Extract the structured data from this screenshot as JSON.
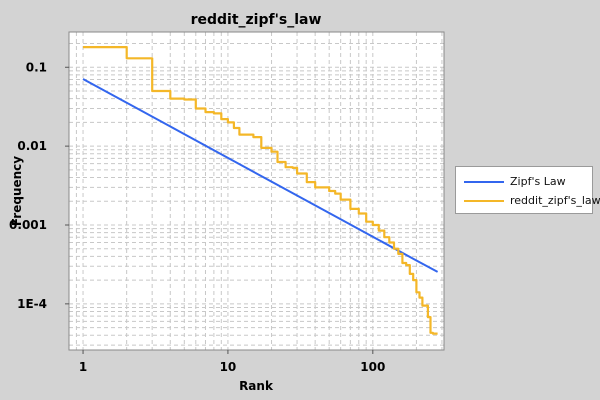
{
  "chart_data": {
    "type": "line",
    "title": "reddit_zipf's_law",
    "xlabel": "Rank",
    "ylabel": "Frequency",
    "x_scale": "log",
    "y_scale": "log",
    "xlim": [
      0.8,
      310
    ],
    "ylim": [
      2.6e-05,
      0.28
    ],
    "x_ticks": [
      1,
      10,
      100
    ],
    "x_tick_labels": [
      "1",
      "10",
      "100"
    ],
    "y_ticks": [
      0.0001,
      0.001,
      0.01,
      0.1
    ],
    "y_tick_labels": [
      "1E-4",
      "0.001",
      "0.01",
      "0.1"
    ],
    "grid": true,
    "legend_position": "right",
    "series": [
      {
        "name": "Zipf's Law",
        "color": "#3366ee",
        "style": "line",
        "points": [
          [
            1,
            0.071
          ],
          [
            2,
            0.0355
          ],
          [
            5,
            0.0142
          ],
          [
            10,
            0.0071
          ],
          [
            20,
            0.00355
          ],
          [
            50,
            0.00142
          ],
          [
            100,
            0.00071
          ],
          [
            200,
            0.000355
          ],
          [
            280,
            0.000254
          ]
        ]
      },
      {
        "name": "reddit_zipf's_law",
        "color": "#f4b728",
        "style": "step",
        "points": [
          [
            1,
            0.18
          ],
          [
            2,
            0.13
          ],
          [
            3,
            0.05
          ],
          [
            4,
            0.04
          ],
          [
            5,
            0.039
          ],
          [
            6,
            0.03
          ],
          [
            7,
            0.027
          ],
          [
            8,
            0.026
          ],
          [
            9,
            0.022
          ],
          [
            10,
            0.02
          ],
          [
            11,
            0.017
          ],
          [
            12,
            0.014
          ],
          [
            15,
            0.013
          ],
          [
            17,
            0.0095
          ],
          [
            20,
            0.0085
          ],
          [
            22,
            0.0063
          ],
          [
            25,
            0.0054
          ],
          [
            28,
            0.0053
          ],
          [
            30,
            0.0045
          ],
          [
            35,
            0.0035
          ],
          [
            40,
            0.003
          ],
          [
            50,
            0.0027
          ],
          [
            55,
            0.0025
          ],
          [
            60,
            0.0021
          ],
          [
            70,
            0.0016
          ],
          [
            80,
            0.0014
          ],
          [
            90,
            0.0011
          ],
          [
            100,
            0.001
          ],
          [
            110,
            0.00085
          ],
          [
            120,
            0.0007
          ],
          [
            130,
            0.0006
          ],
          [
            140,
            0.0005
          ],
          [
            150,
            0.00043
          ],
          [
            160,
            0.00033
          ],
          [
            170,
            0.00031
          ],
          [
            180,
            0.00024
          ],
          [
            190,
            0.0002
          ],
          [
            200,
            0.00014
          ],
          [
            210,
            0.00012
          ],
          [
            220,
            9.5e-05
          ],
          [
            240,
            6.8e-05
          ],
          [
            250,
            4.3e-05
          ],
          [
            260,
            4.2e-05
          ],
          [
            280,
            4.2e-05
          ]
        ]
      }
    ]
  }
}
